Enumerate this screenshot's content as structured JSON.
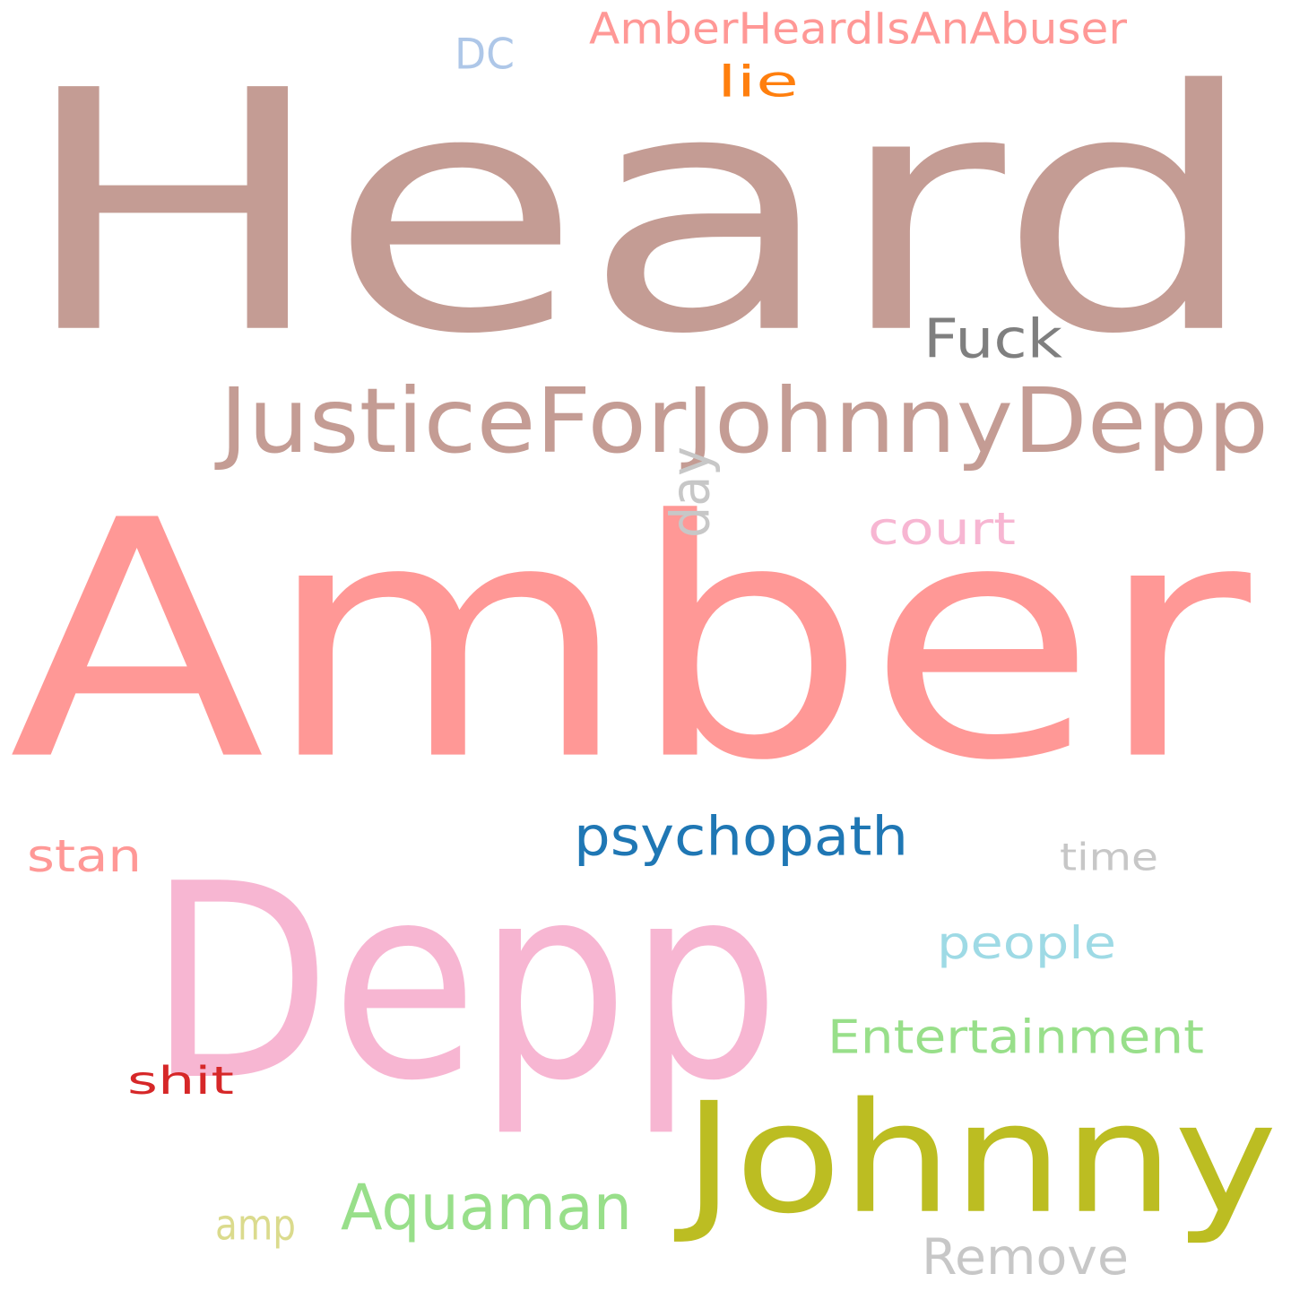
{
  "words": [
    {
      "text": "Heard",
      "color": "#c49c94"
    },
    {
      "text": "Amber",
      "color": "#ff9896"
    },
    {
      "text": "Depp",
      "color": "#f7b6d2"
    },
    {
      "text": "Johnny",
      "color": "#bcbd22"
    },
    {
      "text": "JusticeForJohnnyDepp",
      "color": "#c49c94"
    },
    {
      "text": "Fuck",
      "color": "#7f7f7f"
    },
    {
      "text": "psychopath",
      "color": "#1f77b4"
    },
    {
      "text": "Aquaman",
      "color": "#98df8a"
    },
    {
      "text": "Entertainment",
      "color": "#98df8a"
    },
    {
      "text": "Remove",
      "color": "#c7c7c7"
    },
    {
      "text": "people",
      "color": "#9edae5"
    },
    {
      "text": "court",
      "color": "#f7b6d2"
    },
    {
      "text": "AmberHeardIsAnAbuser",
      "color": "#ff9896"
    },
    {
      "text": "stan",
      "color": "#ff9896"
    },
    {
      "text": "shit",
      "color": "#d62728"
    },
    {
      "text": "time",
      "color": "#c7c7c7"
    },
    {
      "text": "day",
      "color": "#c7c7c7"
    },
    {
      "text": "DC",
      "color": "#aec7e8"
    },
    {
      "text": "lie",
      "color": "#ff7f0e"
    },
    {
      "text": "amp",
      "color": "#dbdb8d"
    }
  ]
}
